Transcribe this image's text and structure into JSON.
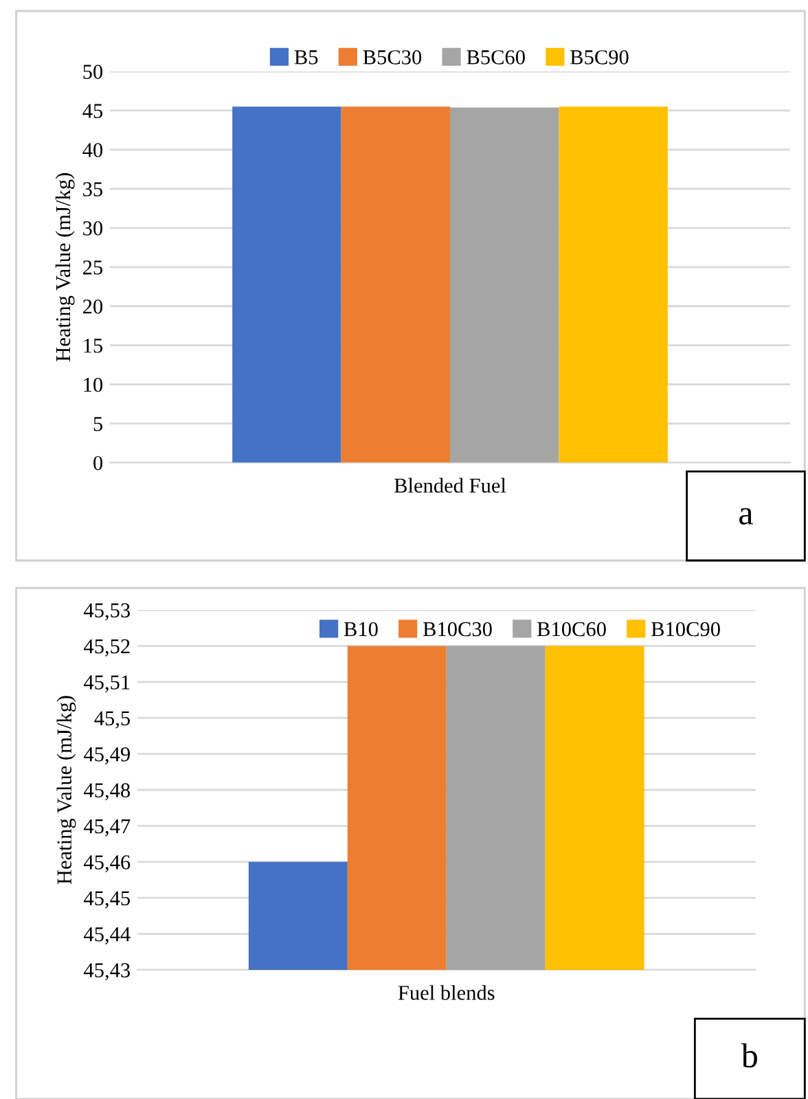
{
  "chart_data": [
    {
      "type": "bar",
      "ylabel": "Heating Value (mJ/kg)",
      "xlabel": null,
      "categories": [
        "Blended Fuel"
      ],
      "series": [
        {
          "name": "B5",
          "color": "#4472c4",
          "values": [
            45.5
          ]
        },
        {
          "name": "B5C30",
          "color": "#ed7d31",
          "values": [
            45.5
          ]
        },
        {
          "name": "B5C60",
          "color": "#a5a5a5",
          "values": [
            45.4
          ]
        },
        {
          "name": "B5C90",
          "color": "#ffc000",
          "values": [
            45.5
          ]
        }
      ],
      "ylim": [
        0,
        50
      ],
      "yticks": [
        0,
        5,
        10,
        15,
        20,
        25,
        30,
        35,
        40,
        45,
        50
      ],
      "grid": "y",
      "legend": "top",
      "annotations": [
        "a"
      ]
    },
    {
      "type": "bar",
      "ylabel": "Heating Value (mJ/kg)",
      "categories": [
        "Fuel blends"
      ],
      "series": [
        {
          "name": "B10",
          "color": "#4472c4",
          "values": [
            45.46
          ]
        },
        {
          "name": "B10C30",
          "color": "#ed7d31",
          "values": [
            45.52
          ]
        },
        {
          "name": "B10C60",
          "color": "#a5a5a5",
          "values": [
            45.52
          ]
        },
        {
          "name": "B10C90",
          "color": "#ffc000",
          "values": [
            45.52
          ]
        }
      ],
      "ylim": [
        45.43,
        45.53
      ],
      "yticks": [
        {
          "value": 45.43,
          "label": "45,43"
        },
        {
          "value": 45.44,
          "label": "45,44"
        },
        {
          "value": 45.45,
          "label": "45,45"
        },
        {
          "value": 45.46,
          "label": "45,46"
        },
        {
          "value": 45.47,
          "label": "45,47"
        },
        {
          "value": 45.48,
          "label": "45,48"
        },
        {
          "value": 45.49,
          "label": "45,49"
        },
        {
          "value": 45.5,
          "label": "45,5"
        },
        {
          "value": 45.51,
          "label": "45,51"
        },
        {
          "value": 45.52,
          "label": "45,52"
        },
        {
          "value": 45.53,
          "label": "45,53"
        }
      ],
      "grid": "y",
      "legend": "top",
      "annotations": [
        "b"
      ]
    }
  ]
}
